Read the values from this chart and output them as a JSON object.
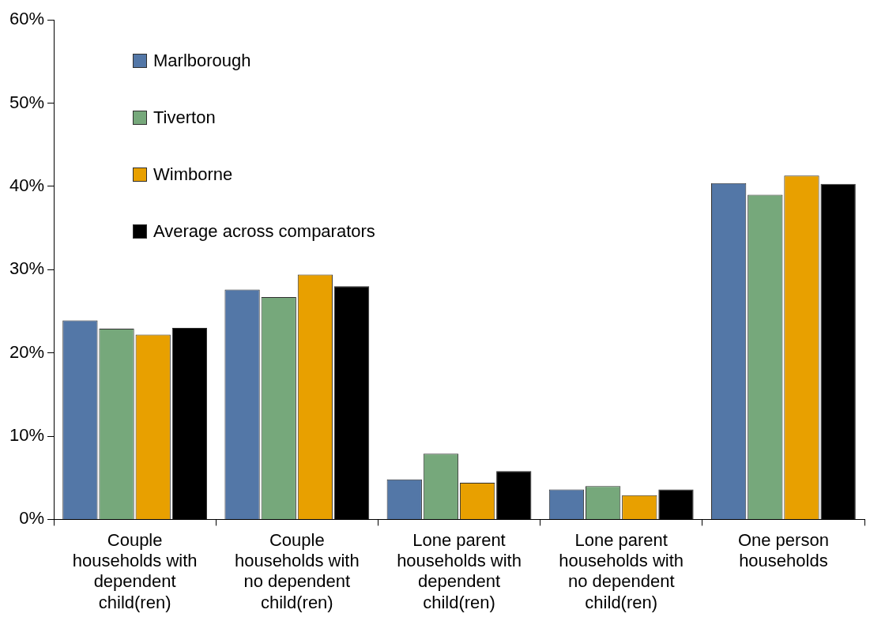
{
  "chart_data": {
    "type": "bar",
    "categories": [
      "Couple households with dependent child(ren)",
      "Couple households with no dependent child(ren)",
      "Lone parent households with dependent child(ren)",
      "Lone parent households with no dependent child(ren)",
      "One person households"
    ],
    "series": [
      {
        "name": "Marlborough",
        "color": "#5377a7",
        "values": [
          23.9,
          27.6,
          4.8,
          3.6,
          40.4
        ]
      },
      {
        "name": "Tiverton",
        "color": "#76a87b",
        "values": [
          22.9,
          26.7,
          7.9,
          4.0,
          39.0
        ]
      },
      {
        "name": "Wimborne",
        "color": "#e8a000",
        "values": [
          22.2,
          29.4,
          4.4,
          2.9,
          41.3
        ]
      },
      {
        "name": "Average across comparators",
        "color": "#000000",
        "values": [
          23.0,
          28.0,
          5.8,
          3.6,
          40.3
        ]
      }
    ],
    "ylim": [
      0,
      60
    ],
    "yticks": [
      {
        "value": 0,
        "label": "0%"
      },
      {
        "value": 10,
        "label": "10%"
      },
      {
        "value": 20,
        "label": "20%"
      },
      {
        "value": 30,
        "label": "30%"
      },
      {
        "value": 40,
        "label": "40%"
      },
      {
        "value": 50,
        "label": "50%"
      },
      {
        "value": 60,
        "label": "60%"
      }
    ],
    "grid": false,
    "legend": "top left"
  }
}
